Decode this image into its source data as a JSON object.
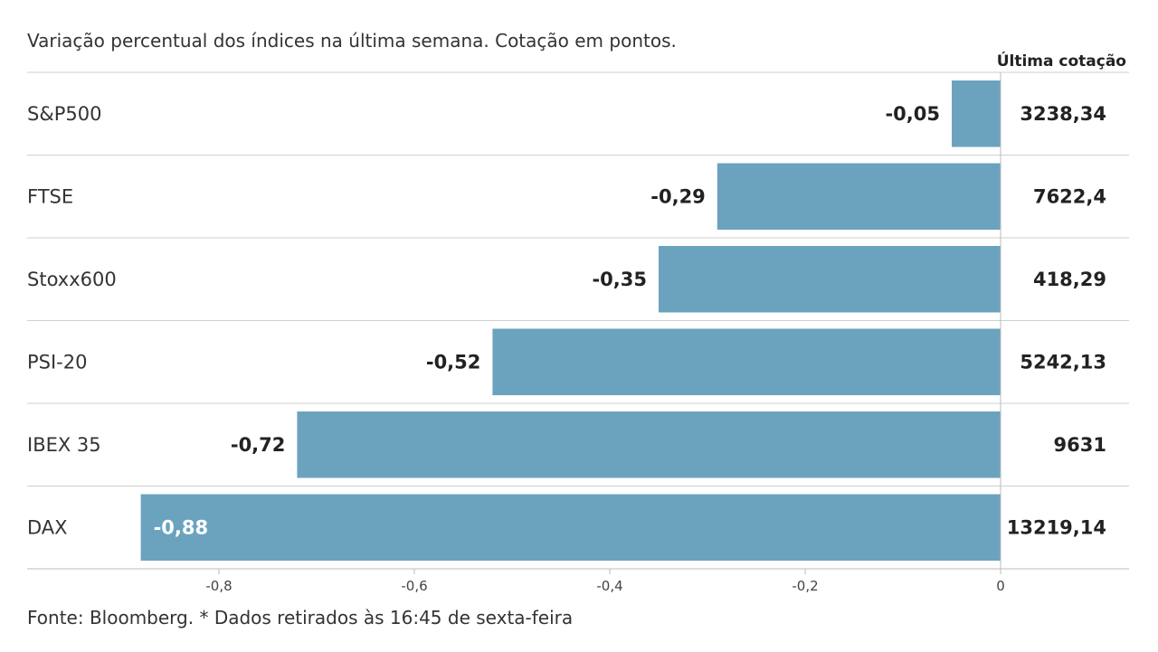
{
  "chart_data": {
    "type": "bar",
    "orientation": "horizontal",
    "subtitle": "Variação percentual dos índices na última semana. Cotação em pontos.",
    "column_header": "Última cotação",
    "categories": [
      "S&P500",
      "FTSE",
      "Stoxx600",
      "PSI-20",
      "IBEX 35",
      "DAX"
    ],
    "values": [
      -0.05,
      -0.29,
      -0.35,
      -0.52,
      -0.72,
      -0.88
    ],
    "value_labels": [
      "-0,05",
      "-0,29",
      "-0,35",
      "-0,52",
      "-0,72",
      "-0,88"
    ],
    "last_quote": [
      "3238,34",
      "7622,4",
      "418,29",
      "5242,13",
      "9631",
      "13219,14"
    ],
    "xlim": [
      -1.0,
      0.0
    ],
    "x_ticks": [
      -0.8,
      -0.6,
      -0.4,
      -0.2,
      0
    ],
    "x_tick_labels": [
      "-0,8",
      "-0,6",
      "-0,4",
      "-0,2",
      "0"
    ],
    "grid": false,
    "source": "Fonte: Bloomberg.  * Dados retirados às 16:45 de sexta-feira",
    "colors": {
      "bar": "#6ba3bf",
      "label_outside": "#222222",
      "label_inside": "#ffffff",
      "row_divider": "#cfcfcf",
      "axis_line": "#bbbbbb"
    }
  }
}
